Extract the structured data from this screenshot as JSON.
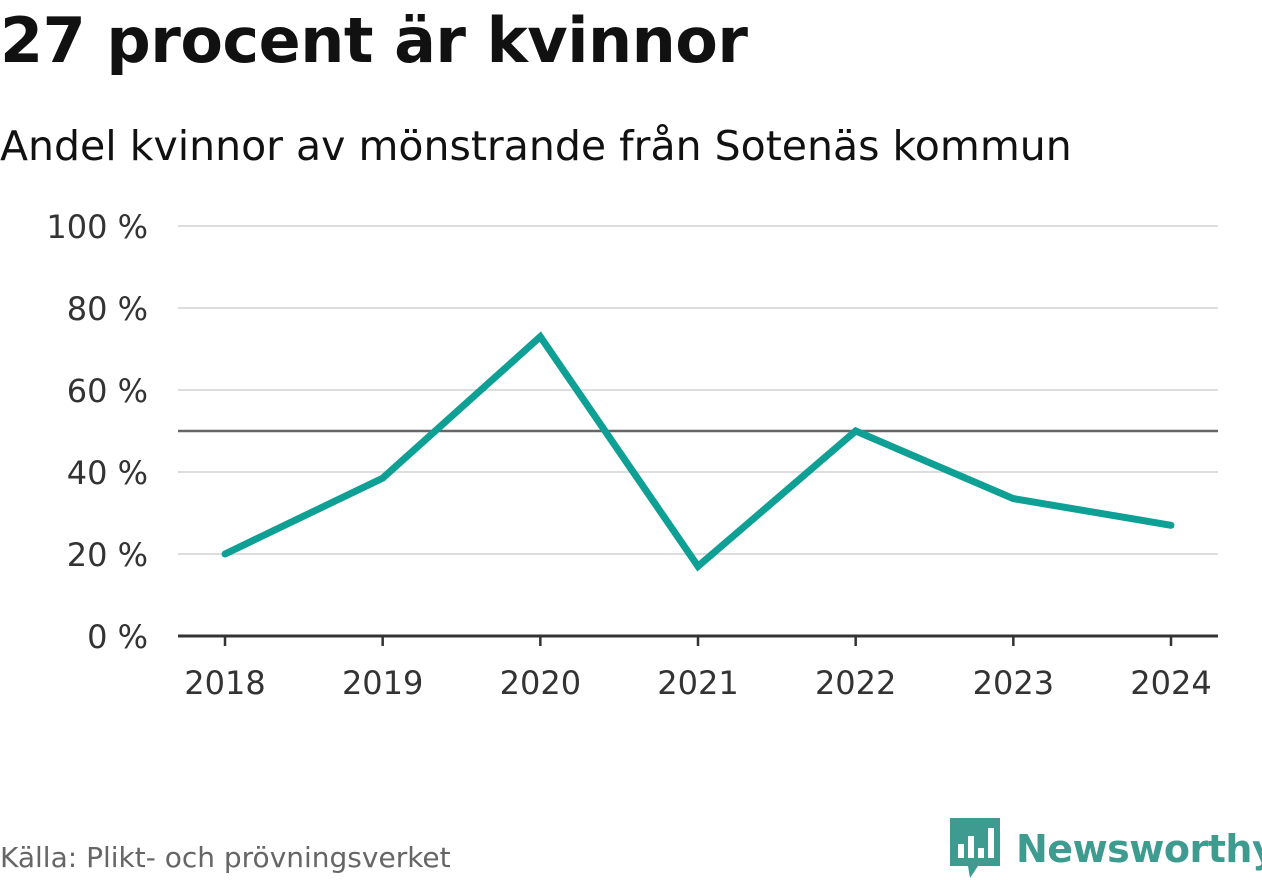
{
  "header": {
    "title": "27 procent är kvinnor",
    "subtitle": "Andel kvinnor av mönstrande från Sotenäs kommun"
  },
  "footer": {
    "source": "Källa: Plikt- och prövningsverket",
    "brand": "Newsworthy",
    "brand_icon": "bar-chart-speech-bubble-icon"
  },
  "colors": {
    "series": "#0e9f95",
    "reference_line": "#666666",
    "grid": "#dddddd",
    "axis": "#333333",
    "brand": "#3d9b90"
  },
  "chart_data": {
    "type": "line",
    "x": [
      "2018",
      "2019",
      "2020",
      "2021",
      "2022",
      "2023",
      "2024"
    ],
    "series": [
      {
        "values": [
          20,
          38.5,
          73,
          17,
          50,
          33.5,
          27
        ]
      }
    ],
    "ylim": [
      0,
      100
    ],
    "yticks": [
      0,
      20,
      40,
      60,
      80,
      100
    ],
    "ytick_labels": [
      "0 %",
      "20 %",
      "40 %",
      "60 %",
      "80 %",
      "100 %"
    ],
    "reference_line": 50,
    "grid": true,
    "xlabel": "",
    "ylabel": ""
  }
}
